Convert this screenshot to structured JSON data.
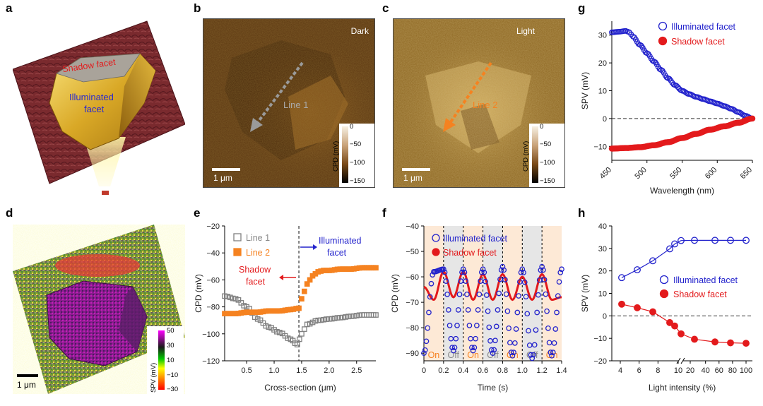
{
  "panels": {
    "a": {
      "letter": "a",
      "labels": {
        "shadow": "Shadow facet",
        "illuminated_1": "Illuminated",
        "illuminated_2": "facet"
      }
    },
    "b": {
      "letter": "b",
      "label": "Dark",
      "line_label": "Line 1",
      "scale": "1 μm",
      "colorbar": {
        "title": "CPD (mV)",
        "ticks": [
          "0",
          "−50",
          "−100",
          "−150"
        ]
      }
    },
    "c": {
      "letter": "c",
      "label": "Light",
      "line_label": "Line 2",
      "scale": "1 μm",
      "colorbar": {
        "title": "CPD (mV)",
        "ticks": [
          "0",
          "−50",
          "−100",
          "−150"
        ]
      }
    },
    "d": {
      "letter": "d",
      "scale": "1 μm",
      "colorbar": {
        "title": "SPV (mV)",
        "ticks": [
          "50",
          "30",
          "10",
          "−10",
          "−30"
        ]
      }
    },
    "e": {
      "letter": "e"
    },
    "f": {
      "letter": "f"
    },
    "g": {
      "letter": "g"
    },
    "h": {
      "letter": "h"
    }
  },
  "colors": {
    "illuminated": "#2222cc",
    "shadow": "#e31a1c",
    "line1": "#808080",
    "line2": "#f58220",
    "on_shade": "#fde9d6",
    "off_shade": "#e6e6e6"
  },
  "chart_data": [
    {
      "panel": "e",
      "type": "scatter",
      "xlabel": "Cross-section (μm)",
      "ylabel": "CPD (mV)",
      "xlim": [
        0.1,
        2.85
      ],
      "ylim": [
        -120,
        -20
      ],
      "xticks": [
        0.5,
        1.0,
        1.5,
        2.0,
        2.5
      ],
      "xtick_labels": [
        "0.5",
        "1.0",
        "1.5",
        "2.0",
        "2.5"
      ],
      "yticks": [
        -120,
        -100,
        -80,
        -60,
        -40,
        -20
      ],
      "ytick_labels": [
        "−120",
        "−100",
        "−80",
        "−60",
        "−40",
        "−20"
      ],
      "legend": [
        "Line 1",
        "Line 2"
      ],
      "annotations": {
        "vline_x": 1.45,
        "illuminated_1": "Illuminated",
        "illuminated_2": "facet",
        "shadow_1": "Shadow",
        "shadow_2": "facet"
      },
      "series": [
        {
          "name": "Line 1",
          "marker": "open-square",
          "x": [
            0.1,
            0.3,
            0.5,
            0.7,
            0.9,
            1.1,
            1.3,
            1.42,
            1.5,
            1.6,
            1.8,
            2.0,
            2.2,
            2.4,
            2.6,
            2.85
          ],
          "y": [
            -72,
            -74,
            -80,
            -89,
            -95,
            -99,
            -104,
            -108,
            -100,
            -93,
            -90,
            -89,
            -88,
            -87,
            -86,
            -86
          ]
        },
        {
          "name": "Line 2",
          "marker": "filled-square",
          "x": [
            0.1,
            0.3,
            0.5,
            0.7,
            0.9,
            1.1,
            1.3,
            1.45,
            1.5,
            1.6,
            1.7,
            1.8,
            1.9,
            2.0,
            2.2,
            2.4,
            2.6,
            2.85
          ],
          "y": [
            -85,
            -85,
            -84,
            -84,
            -83,
            -83,
            -82,
            -81,
            -74,
            -63,
            -57,
            -54,
            -53,
            -53,
            -52,
            -52,
            -51,
            -51
          ]
        }
      ]
    },
    {
      "panel": "f",
      "type": "line",
      "xlabel": "Time (s)",
      "ylabel": "CPD (mV)",
      "xlim": [
        0,
        1.4
      ],
      "ylim": [
        -93,
        -40
      ],
      "xticks": [
        0,
        0.2,
        0.4,
        0.6,
        0.8,
        1.0,
        1.2,
        1.4
      ],
      "xtick_labels": [
        "0",
        "0.2",
        "0.4",
        "0.6",
        "0.8",
        "1.0",
        "1.2",
        "1.4"
      ],
      "yticks": [
        -90,
        -80,
        -70,
        -60,
        -50,
        -40
      ],
      "ytick_labels": [
        "−90",
        "−80",
        "−70",
        "−60",
        "−50",
        "−40"
      ],
      "legend": [
        "Illuminated facet",
        "Shadow facet"
      ],
      "phase_labels": [
        "On",
        "Off",
        "On",
        "Off",
        "On",
        "Off",
        "On"
      ],
      "phase_bounds": [
        0,
        0.2,
        0.4,
        0.6,
        0.8,
        1.0,
        1.2,
        1.4
      ],
      "series": [
        {
          "name": "Illuminated facet",
          "marker": "open-circle",
          "x": [
            0,
            0.1,
            0.2,
            0.3,
            0.4,
            0.5,
            0.6,
            0.7,
            0.8,
            0.9,
            1.0,
            1.1,
            1.2,
            1.3,
            1.4
          ],
          "y": [
            -90,
            -58,
            -57,
            -89,
            -57,
            -89,
            -57,
            -90,
            -56,
            -91,
            -57,
            -92,
            -56,
            -91,
            -57
          ]
        },
        {
          "name": "Shadow facet",
          "marker": "filled-circle",
          "x": [
            0,
            0.1,
            0.2,
            0.3,
            0.4,
            0.5,
            0.6,
            0.7,
            0.8,
            0.9,
            1.0,
            1.1,
            1.2,
            1.3,
            1.4
          ],
          "y": [
            -64,
            -69,
            -58,
            -68,
            -58,
            -69,
            -59,
            -69,
            -59,
            -69,
            -60,
            -69,
            -59,
            -69,
            -68
          ]
        }
      ]
    },
    {
      "panel": "g",
      "type": "scatter",
      "xlabel": "Wavelength (nm)",
      "ylabel": "SPV (mV)",
      "xlim": [
        450,
        650
      ],
      "ylim": [
        -15,
        35
      ],
      "xticks": [
        450,
        500,
        550,
        600,
        650
      ],
      "xtick_labels": [
        "450",
        "500",
        "550",
        "600",
        "650"
      ],
      "yticks": [
        -10,
        0,
        10,
        20,
        30
      ],
      "ytick_labels": [
        "−10",
        "0",
        "10",
        "20",
        "30"
      ],
      "legend": [
        "Illuminated facet",
        "Shadow facet"
      ],
      "series": [
        {
          "name": "Illuminated facet",
          "marker": "open-circle",
          "x": [
            450,
            460,
            470,
            475,
            480,
            490,
            500,
            510,
            520,
            530,
            540,
            550,
            560,
            570,
            580,
            590,
            600,
            610,
            620,
            630,
            640,
            650
          ],
          "y": [
            31,
            31.2,
            31.5,
            31,
            29.5,
            26.5,
            23.5,
            20.5,
            17.5,
            14.5,
            12,
            10,
            8.8,
            7.8,
            7,
            6.2,
            5.4,
            4.5,
            3.5,
            2.3,
            1,
            0
          ]
        },
        {
          "name": "Shadow facet",
          "marker": "filled-circle",
          "x": [
            450,
            470,
            490,
            510,
            530,
            550,
            570,
            590,
            610,
            630,
            650
          ],
          "y": [
            -10.8,
            -10.6,
            -10.3,
            -9.6,
            -8.5,
            -7,
            -5.5,
            -4,
            -2.8,
            -1.5,
            0
          ]
        }
      ]
    },
    {
      "panel": "h",
      "type": "scatter",
      "xlabel": "Light intensity (%)",
      "ylabel": "SPV (mV)",
      "ylim": [
        -20,
        40
      ],
      "xtick_labels": [
        "4",
        "6",
        "8",
        "10",
        "20",
        "40",
        "60",
        "80",
        "100"
      ],
      "yticks": [
        -20,
        -10,
        0,
        10,
        20,
        30,
        40
      ],
      "ytick_labels": [
        "−20",
        "−10",
        "0",
        "10",
        "20",
        "30",
        "40"
      ],
      "legend": [
        "Illuminated facet",
        "Shadow facet"
      ],
      "series": [
        {
          "name": "Illuminated facet",
          "marker": "open-circle",
          "x": [
            4.7,
            6.3,
            8,
            10,
            12,
            20,
            40,
            60,
            80,
            100
          ],
          "y": [
            17,
            20.5,
            24.5,
            29.8,
            32,
            33.5,
            33.6,
            33.6,
            33.6,
            33.6
          ]
        },
        {
          "name": "Shadow facet",
          "marker": "filled-circle",
          "x": [
            4.7,
            6.3,
            8,
            10,
            12,
            20,
            40,
            60,
            80,
            100
          ],
          "y": [
            5.2,
            3.6,
            1.8,
            -3,
            -4.5,
            -8,
            -10.4,
            -11.6,
            -12,
            -12.2
          ]
        }
      ]
    }
  ]
}
